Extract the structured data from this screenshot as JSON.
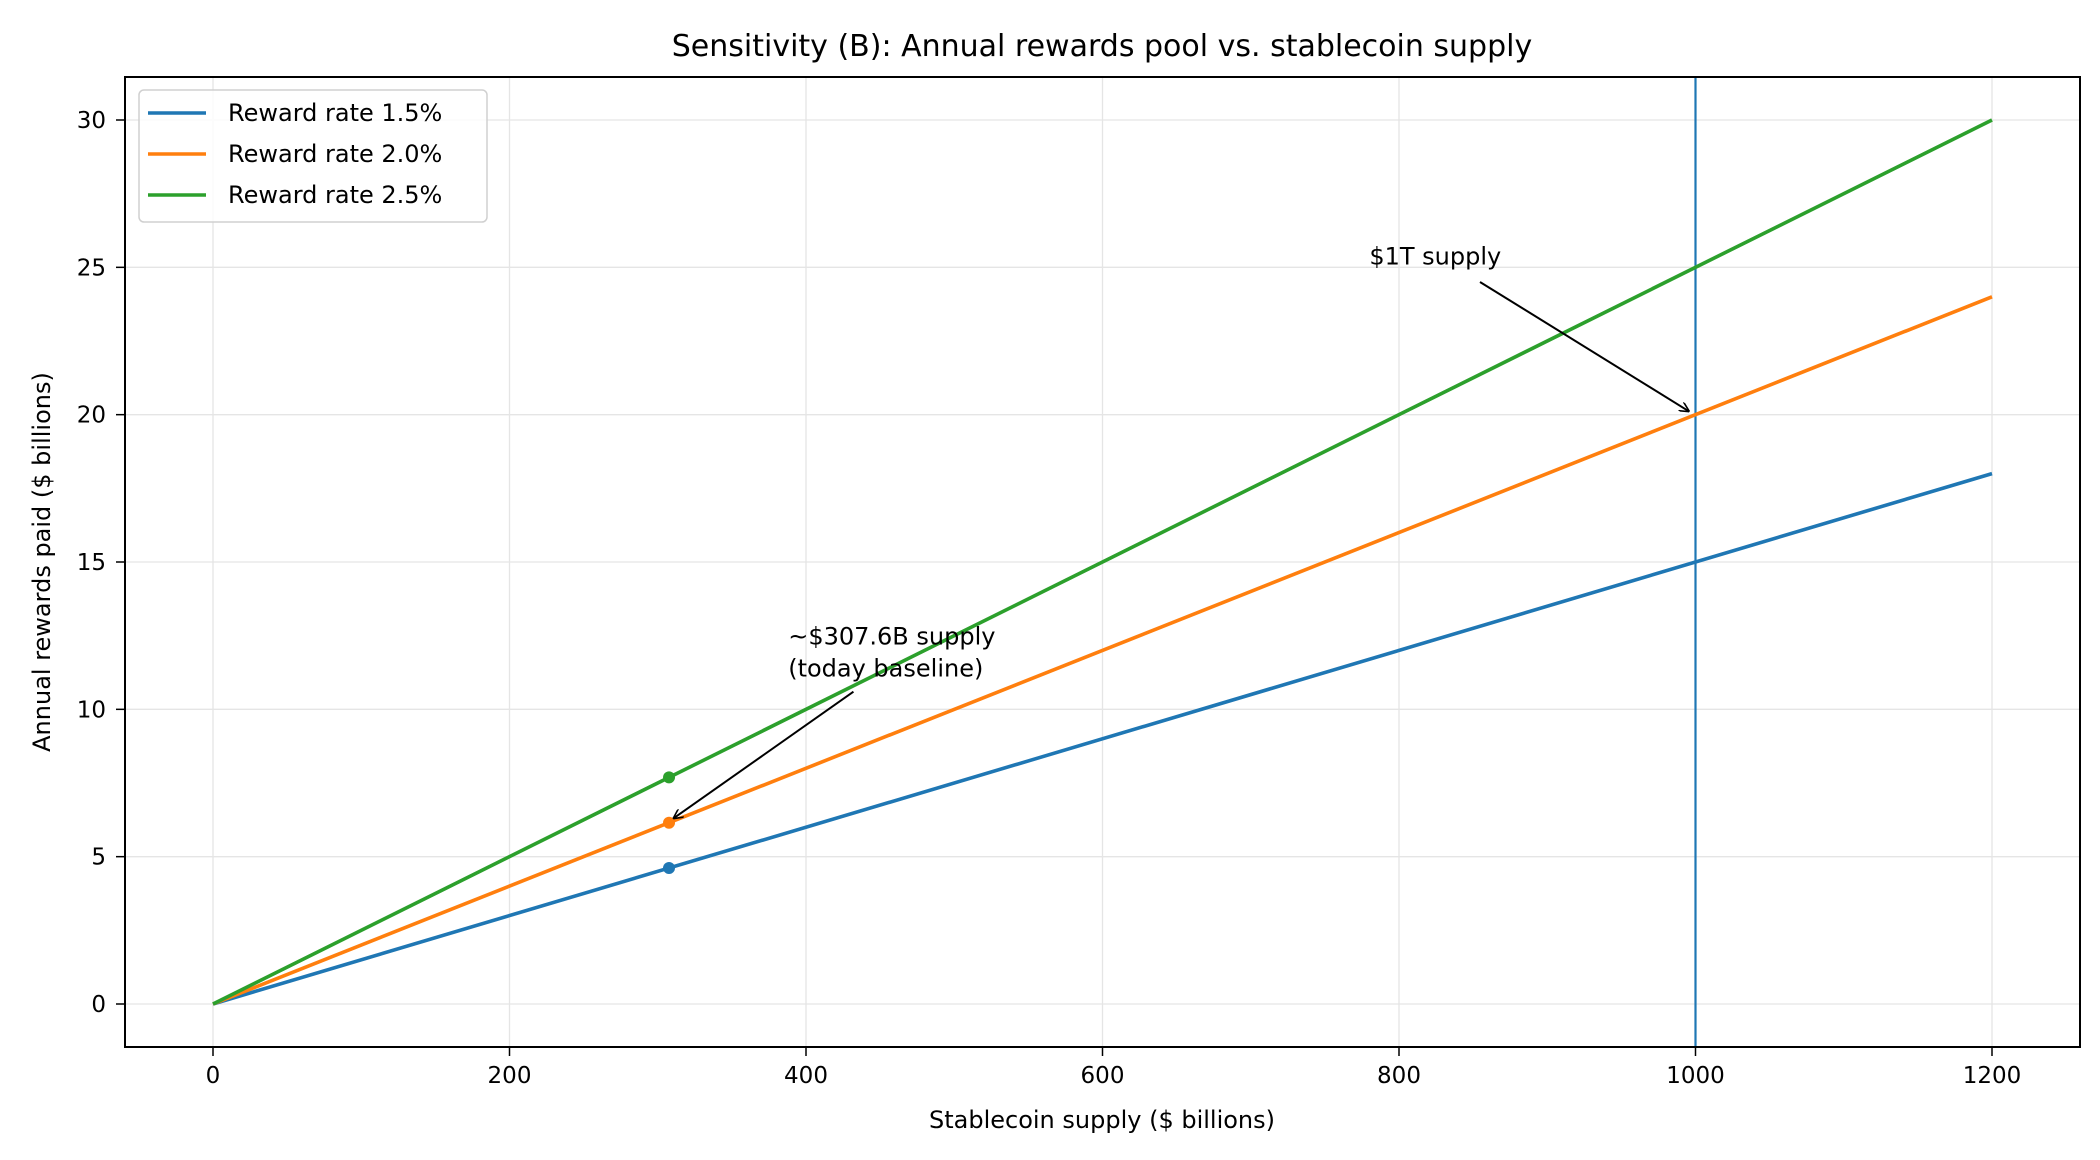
{
  "chart_data": {
    "type": "line",
    "title": "Sensitivity (B): Annual rewards pool vs. stablecoin supply",
    "xlabel": "Stablecoin supply ($ billions)",
    "ylabel": "Annual rewards paid ($ billions)",
    "xlim": [
      -50,
      1250
    ],
    "ylim": [
      -1.5,
      31.5
    ],
    "xticks": [
      0,
      200,
      400,
      600,
      800,
      1000,
      1200
    ],
    "yticks": [
      0,
      5,
      10,
      15,
      20,
      25,
      30
    ],
    "grid": true,
    "legend_position": "top-left",
    "x": [
      0,
      1200
    ],
    "series": [
      {
        "name": "Reward rate 1.5%",
        "color": "#1f77b4",
        "values": [
          0,
          18
        ]
      },
      {
        "name": "Reward rate 2.0%",
        "color": "#ff7f0e",
        "values": [
          0,
          24
        ]
      },
      {
        "name": "Reward rate 2.5%",
        "color": "#2ca02c",
        "values": [
          0,
          30
        ]
      }
    ],
    "baseline_points": {
      "x": 307.6,
      "values": [
        4.614,
        6.152,
        7.69
      ]
    },
    "vline": {
      "x": 1000,
      "color": "#1f77b4"
    },
    "annotations": [
      {
        "lines": [
          "$1T supply"
        ],
        "text_at": [
          780,
          25.1
        ],
        "arrow_to": [
          1000,
          20
        ]
      },
      {
        "lines": [
          "~$307.6B supply",
          "(today baseline)"
        ],
        "text_at": [
          388,
          12.2
        ],
        "arrow_from": [
          432,
          10.6
        ],
        "arrow_to": [
          307.6,
          6.152
        ]
      }
    ]
  }
}
